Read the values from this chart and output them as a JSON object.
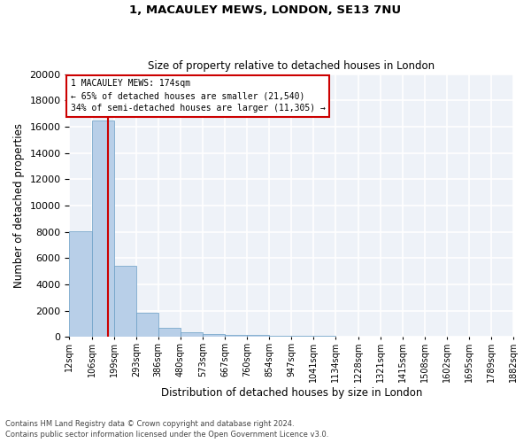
{
  "title1": "1, MACAULEY MEWS, LONDON, SE13 7NU",
  "title2": "Size of property relative to detached houses in London",
  "xlabel": "Distribution of detached houses by size in London",
  "ylabel": "Number of detached properties",
  "bar_color": "#b8cfe8",
  "bar_edge_color": "#6a9ec5",
  "vline_color": "#cc0000",
  "property_size": 174,
  "annotation_line1": "1 MACAULEY MEWS: 174sqm",
  "annotation_line2": "← 65% of detached houses are smaller (21,540)",
  "annotation_line3": "34% of semi-detached houses are larger (11,305) →",
  "footer1": "Contains HM Land Registry data © Crown copyright and database right 2024.",
  "footer2": "Contains public sector information licensed under the Open Government Licence v3.0.",
  "bin_edges": [
    12,
    106,
    199,
    293,
    386,
    480,
    573,
    667,
    760,
    854,
    947,
    1041,
    1134,
    1228,
    1321,
    1415,
    1508,
    1602,
    1695,
    1789,
    1882
  ],
  "bin_counts": [
    8050,
    16500,
    5400,
    1850,
    700,
    350,
    200,
    180,
    150,
    100,
    80,
    60,
    50,
    45,
    40,
    35,
    30,
    25,
    20,
    15
  ],
  "ylim": [
    0,
    20000
  ],
  "yticks": [
    0,
    2000,
    4000,
    6000,
    8000,
    10000,
    12000,
    14000,
    16000,
    18000,
    20000
  ],
  "background_color": "#eef2f8",
  "grid_color": "#ffffff"
}
